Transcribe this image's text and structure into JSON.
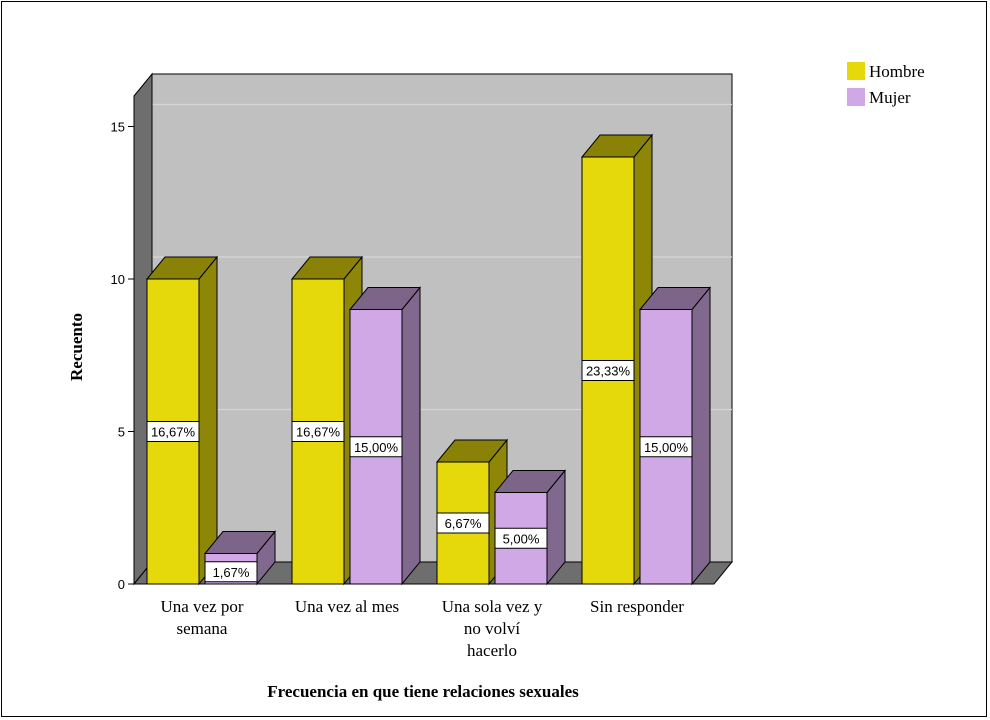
{
  "chart_data": {
    "type": "bar",
    "categories": [
      [
        "Una vez por",
        "semana"
      ],
      [
        "Una vez al mes"
      ],
      [
        "Una sola vez y",
        "no volví",
        "hacerlo"
      ],
      [
        "Sin responder"
      ]
    ],
    "series": [
      {
        "name": "Hombre",
        "color": "#e5d80b",
        "values": [
          10,
          10,
          4,
          14
        ],
        "labels": [
          "16,67%",
          "16,67%",
          "6,67%",
          "23,33%"
        ]
      },
      {
        "name": "Mujer",
        "color": "#d0a8e6",
        "values": [
          1,
          9,
          3,
          9
        ],
        "labels": [
          "1,67%",
          "15,00%",
          "5,00%",
          "15,00%"
        ]
      }
    ],
    "xlabel": "Frecuencia en que tiene relaciones sexuales",
    "ylabel": "Recuento",
    "ylim": [
      0,
      16
    ],
    "yticks": [
      "0",
      "5",
      "10",
      "15"
    ],
    "grid": true,
    "legend_position": "top-right",
    "style": "3d"
  }
}
